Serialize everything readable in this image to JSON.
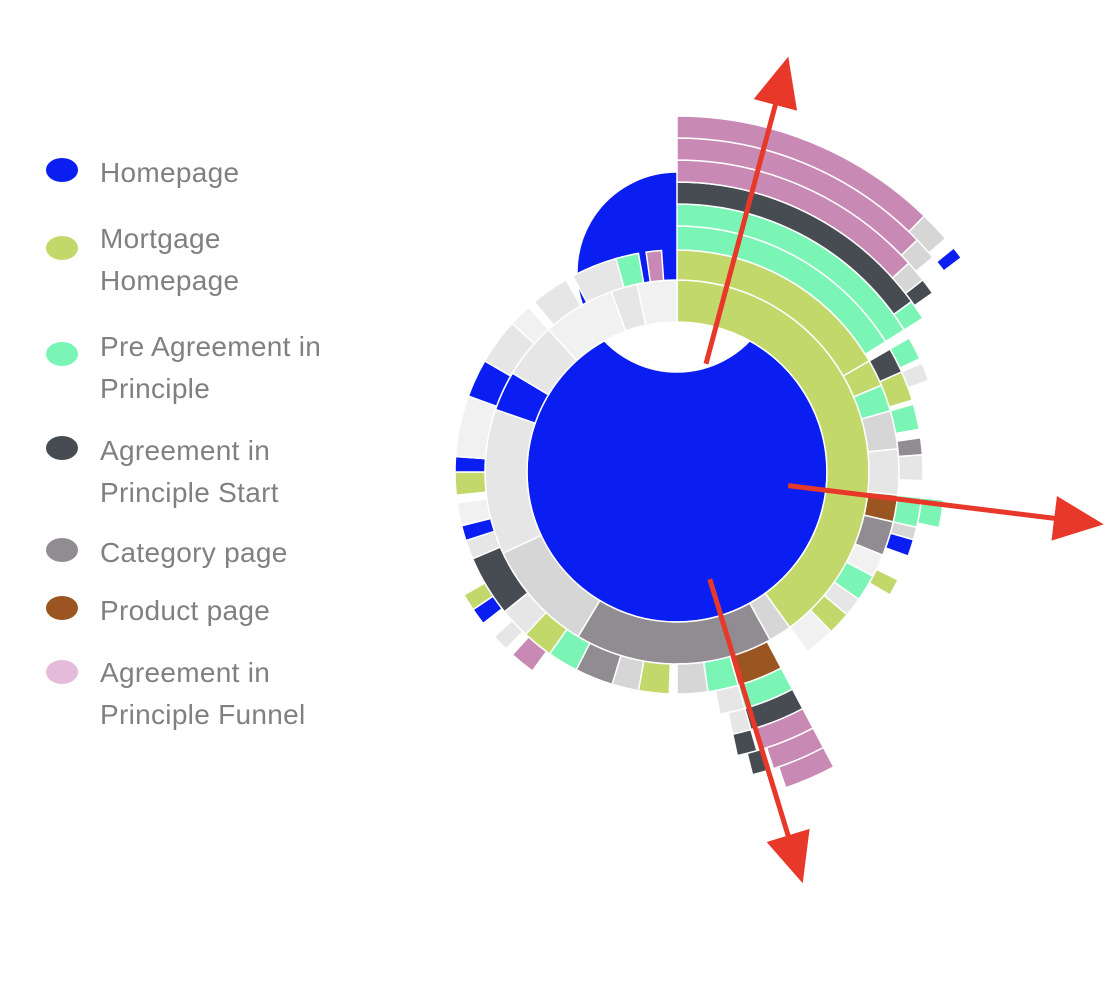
{
  "legend": {
    "items": [
      {
        "label": "Homepage",
        "color": "#0a1ef2"
      },
      {
        "label": "Mortgage\nHomepage",
        "color": "#c3d86a"
      },
      {
        "label": "Pre Agreement in\nPrinciple",
        "color": "#7bf5b6"
      },
      {
        "label": "Agreement in\nPrinciple Start",
        "color": "#474c53"
      },
      {
        "label": "Category page",
        "color": "#918c92"
      },
      {
        "label": "Product page",
        "color": "#9a5520"
      },
      {
        "label": "Agreement in\nPrinciple Funnel",
        "color": "#e4bcd9"
      }
    ]
  },
  "chart_data": {
    "type": "sunburst",
    "title": "",
    "category_colors": {
      "Homepage": "#0a1ef2",
      "Mortgage Homepage": "#c3d86a",
      "Pre Agreement in Principle": "#7bf5b6",
      "Agreement in Principle Start": "#474c53",
      "Category page": "#918c92",
      "Product page": "#9a5520",
      "Agreement in Principle Funnel": "#c989b5",
      "Other": "#d6d6d6",
      "Other (light)": "#e6e6e6",
      "Other (faint)": "#f1f1f1"
    },
    "segments": [
      {
        "ring": 1,
        "start": 0,
        "end": 360,
        "category": "Homepage"
      },
      {
        "ring": 2,
        "start": 0,
        "end": 144,
        "category": "Mortgage Homepage"
      },
      {
        "ring": 2,
        "start": 144,
        "end": 151,
        "category": "Other"
      },
      {
        "ring": 2,
        "start": 151,
        "end": 211,
        "category": "Category page"
      },
      {
        "ring": 2,
        "start": 211,
        "end": 245,
        "category": "Other"
      },
      {
        "ring": 2,
        "start": 245,
        "end": 289,
        "category": "Other (light)"
      },
      {
        "ring": 2,
        "start": 289,
        "end": 301,
        "category": "Homepage"
      },
      {
        "ring": 2,
        "start": 301,
        "end": 318,
        "category": "Other (light)"
      },
      {
        "ring": 2,
        "start": 318,
        "end": 340,
        "category": "Other (faint)"
      },
      {
        "ring": 2,
        "start": 340,
        "end": 348,
        "category": "Other (light)"
      },
      {
        "ring": 2,
        "start": 348,
        "end": 360,
        "category": "Other (faint)"
      },
      {
        "ring": 3,
        "start": 0,
        "end": 60,
        "category": "Mortgage Homepage"
      },
      {
        "ring": 3,
        "start": 60,
        "end": 67,
        "category": "Mortgage Homepage"
      },
      {
        "ring": 3,
        "start": 67,
        "end": 74,
        "category": "Pre Agreement in Principle"
      },
      {
        "ring": 3,
        "start": 74,
        "end": 84,
        "category": "Other"
      },
      {
        "ring": 3,
        "start": 84,
        "end": 96,
        "category": "Other (light)"
      },
      {
        "ring": 3,
        "start": 96,
        "end": 103,
        "category": "Product page"
      },
      {
        "ring": 3,
        "start": 103,
        "end": 112,
        "category": "Category page"
      },
      {
        "ring": 3,
        "start": 112,
        "end": 118,
        "category": "Other (faint)"
      },
      {
        "ring": 3,
        "start": 118,
        "end": 125,
        "category": "Pre Agreement in Principle"
      },
      {
        "ring": 3,
        "start": 125,
        "end": 130,
        "category": "Other (light)"
      },
      {
        "ring": 3,
        "start": 130,
        "end": 136,
        "category": "Mortgage Homepage"
      },
      {
        "ring": 3,
        "start": 136,
        "end": 144,
        "category": "Other (faint)"
      },
      {
        "ring": 3,
        "start": 152,
        "end": 164,
        "category": "Product page"
      },
      {
        "ring": 3,
        "start": 164,
        "end": 172,
        "category": "Pre Agreement in Principle"
      },
      {
        "ring": 3,
        "start": 172,
        "end": 180,
        "category": "Other"
      },
      {
        "ring": 3,
        "start": 182,
        "end": 190,
        "category": "Mortgage Homepage"
      },
      {
        "ring": 3,
        "start": 190,
        "end": 197,
        "category": "Other"
      },
      {
        "ring": 3,
        "start": 197,
        "end": 207,
        "category": "Category page"
      },
      {
        "ring": 3,
        "start": 207,
        "end": 215,
        "category": "Pre Agreement in Principle"
      },
      {
        "ring": 3,
        "start": 215,
        "end": 223,
        "category": "Mortgage Homepage"
      },
      {
        "ring": 3,
        "start": 223,
        "end": 231,
        "category": "Other (light)"
      },
      {
        "ring": 3,
        "start": 231,
        "end": 247,
        "category": "Agreement in Principle Start"
      },
      {
        "ring": 3,
        "start": 247,
        "end": 252,
        "category": "Other (light)"
      },
      {
        "ring": 3,
        "start": 252,
        "end": 256,
        "category": "Homepage"
      },
      {
        "ring": 3,
        "start": 256,
        "end": 262,
        "category": "Other (faint)"
      },
      {
        "ring": 3,
        "start": 264,
        "end": 270,
        "category": "Mortgage Homepage"
      },
      {
        "ring": 3,
        "start": 270,
        "end": 274,
        "category": "Homepage"
      },
      {
        "ring": 3,
        "start": 274,
        "end": 290,
        "category": "Other (faint)"
      },
      {
        "ring": 3,
        "start": 290,
        "end": 300,
        "category": "Homepage"
      },
      {
        "ring": 3,
        "start": 300,
        "end": 312,
        "category": "Other (light)"
      },
      {
        "ring": 3,
        "start": 312,
        "end": 318,
        "category": "Other (faint)"
      },
      {
        "ring": 3,
        "start": 320,
        "end": 330,
        "category": "Other (light)"
      },
      {
        "ring": 3,
        "start": 332,
        "end": 344,
        "category": "Other (light)"
      },
      {
        "ring": 3,
        "start": 344,
        "end": 350,
        "category": "Pre Agreement in Principle"
      },
      {
        "ring": 3,
        "start": 352,
        "end": 356,
        "category": "Agreement in Principle Funnel"
      },
      {
        "ring": 4,
        "start": 0,
        "end": 58,
        "category": "Pre Agreement in Principle"
      },
      {
        "ring": 4,
        "start": 60,
        "end": 66,
        "category": "Agreement in Principle Start"
      },
      {
        "ring": 4,
        "start": 66,
        "end": 73,
        "category": "Mortgage Homepage"
      },
      {
        "ring": 4,
        "start": 74,
        "end": 80,
        "category": "Pre Agreement in Principle"
      },
      {
        "ring": 4,
        "start": 82,
        "end": 86,
        "category": "Category page"
      },
      {
        "ring": 4,
        "start": 86,
        "end": 92,
        "category": "Other (light)"
      },
      {
        "ring": 4,
        "start": 96,
        "end": 103,
        "category": "Pre Agreement in Principle"
      },
      {
        "ring": 4,
        "start": 103,
        "end": 106,
        "category": "Other"
      },
      {
        "ring": 4,
        "start": 106,
        "end": 110,
        "category": "Homepage"
      },
      {
        "ring": 4,
        "start": 116,
        "end": 120,
        "category": "Mortgage Homepage"
      },
      {
        "ring": 4,
        "start": 152,
        "end": 164,
        "category": "Pre Agreement in Principle"
      },
      {
        "ring": 4,
        "start": 164,
        "end": 170,
        "category": "Other (light)"
      },
      {
        "ring": 4,
        "start": 216,
        "end": 222,
        "category": "Agreement in Principle Funnel"
      },
      {
        "ring": 4,
        "start": 224,
        "end": 228,
        "category": "Other (light)"
      },
      {
        "ring": 4,
        "start": 232,
        "end": 236,
        "category": "Homepage"
      },
      {
        "ring": 4,
        "start": 236,
        "end": 240,
        "category": "Mortgage Homepage"
      },
      {
        "ring": 5,
        "start": 0,
        "end": 58,
        "category": "Pre Agreement in Principle"
      },
      {
        "ring": 5,
        "start": 60,
        "end": 65,
        "category": "Pre Agreement in Principle"
      },
      {
        "ring": 5,
        "start": 66,
        "end": 70,
        "category": "Other (light)"
      },
      {
        "ring": 5,
        "start": 96,
        "end": 102,
        "category": "Pre Agreement in Principle"
      },
      {
        "ring": 5,
        "start": 152,
        "end": 164,
        "category": "Agreement in Principle Start"
      },
      {
        "ring": 5,
        "start": 164,
        "end": 168,
        "category": "Other (light)"
      },
      {
        "ring": 6,
        "start": 0,
        "end": 54,
        "category": "Agreement in Principle Start"
      },
      {
        "ring": 6,
        "start": 54,
        "end": 58,
        "category": "Pre Agreement in Principle"
      },
      {
        "ring": 6,
        "start": 152,
        "end": 163,
        "category": "Agreement in Principle Funnel"
      },
      {
        "ring": 6,
        "start": 164,
        "end": 168,
        "category": "Agreement in Principle Start"
      },
      {
        "ring": 7,
        "start": 0,
        "end": 48,
        "category": "Agreement in Principle Funnel"
      },
      {
        "ring": 7,
        "start": 48,
        "end": 52,
        "category": "Other"
      },
      {
        "ring": 7,
        "start": 52,
        "end": 55,
        "category": "Agreement in Principle Start"
      },
      {
        "ring": 7,
        "start": 152,
        "end": 162,
        "category": "Agreement in Principle Funnel"
      },
      {
        "ring": 7,
        "start": 163,
        "end": 166,
        "category": "Agreement in Principle Start"
      },
      {
        "ring": 8,
        "start": 0,
        "end": 46,
        "category": "Agreement in Principle Funnel"
      },
      {
        "ring": 8,
        "start": 46,
        "end": 50,
        "category": "Other"
      },
      {
        "ring": 8,
        "start": 152,
        "end": 161,
        "category": "Agreement in Principle Funnel"
      },
      {
        "ring": 9,
        "start": 0,
        "end": 44,
        "category": "Agreement in Principle Funnel"
      },
      {
        "ring": 9,
        "start": 44,
        "end": 49,
        "category": "Other"
      },
      {
        "ring": 9,
        "start": 51,
        "end": 53,
        "category": "Homepage"
      }
    ],
    "annotations": [
      {
        "type": "arrow",
        "angle": 15,
        "color": "#e8382a"
      },
      {
        "type": "arrow",
        "angle": 97,
        "color": "#e8382a"
      },
      {
        "type": "arrow",
        "angle": 163,
        "color": "#e8382a"
      }
    ]
  }
}
